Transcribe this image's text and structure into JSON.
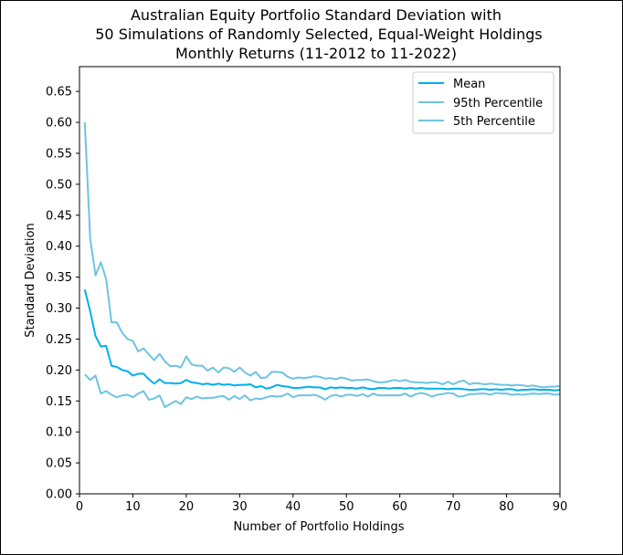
{
  "chart_data": {
    "type": "line",
    "title_lines": [
      "Australian Equity Portfolio Standard Deviation with",
      "50 Simulations of Randomly Selected, Equal-Weight Holdings",
      "Monthly Returns (11-2012 to 11-2022)"
    ],
    "xlabel": "Number of Portfolio Holdings",
    "ylabel": "Standard Deviation",
    "xlim": [
      0,
      90
    ],
    "ylim": [
      0,
      0.69
    ],
    "xticks": [
      0,
      10,
      20,
      30,
      40,
      50,
      60,
      70,
      80,
      90
    ],
    "yticks": [
      0.0,
      0.05,
      0.1,
      0.15,
      0.2,
      0.25,
      0.3,
      0.35,
      0.4,
      0.45,
      0.5,
      0.55,
      0.6,
      0.65
    ],
    "ytick_labels": [
      "0.00",
      "0.05",
      "0.10",
      "0.15",
      "0.20",
      "0.25",
      "0.30",
      "0.35",
      "0.40",
      "0.45",
      "0.50",
      "0.55",
      "0.60",
      "0.65"
    ],
    "grid": false,
    "legend_position": "top-right",
    "x": [
      1,
      2,
      3,
      4,
      5,
      6,
      7,
      8,
      9,
      10,
      11,
      12,
      13,
      14,
      15,
      16,
      17,
      18,
      19,
      20,
      21,
      22,
      23,
      24,
      25,
      26,
      27,
      28,
      29,
      30,
      31,
      32,
      33,
      34,
      35,
      36,
      37,
      38,
      39,
      40,
      41,
      42,
      43,
      44,
      45,
      46,
      47,
      48,
      49,
      50,
      51,
      52,
      53,
      54,
      55,
      56,
      57,
      58,
      59,
      60,
      61,
      62,
      63,
      64,
      65,
      66,
      67,
      68,
      69,
      70,
      71,
      72,
      73,
      74,
      75,
      76,
      77,
      78,
      79,
      80,
      81,
      82,
      83,
      84,
      85,
      86,
      87,
      88,
      89,
      90
    ],
    "series": [
      {
        "name": "Mean",
        "color": "#00aeef",
        "values": [
          0.33,
          0.295,
          0.255,
          0.238,
          0.239,
          0.207,
          0.205,
          0.2,
          0.198,
          0.191,
          0.194,
          0.194,
          0.185,
          0.178,
          0.185,
          0.179,
          0.179,
          0.178,
          0.179,
          0.184,
          0.18,
          0.179,
          0.177,
          0.178,
          0.176,
          0.178,
          0.176,
          0.177,
          0.175,
          0.176,
          0.176,
          0.177,
          0.172,
          0.174,
          0.17,
          0.172,
          0.176,
          0.174,
          0.173,
          0.171,
          0.171,
          0.172,
          0.173,
          0.172,
          0.172,
          0.169,
          0.172,
          0.171,
          0.172,
          0.171,
          0.171,
          0.17,
          0.172,
          0.17,
          0.169,
          0.171,
          0.171,
          0.17,
          0.171,
          0.171,
          0.17,
          0.171,
          0.17,
          0.171,
          0.17,
          0.17,
          0.17,
          0.17,
          0.169,
          0.17,
          0.17,
          0.169,
          0.168,
          0.168,
          0.169,
          0.169,
          0.168,
          0.169,
          0.168,
          0.169,
          0.169,
          0.167,
          0.168,
          0.168,
          0.169,
          0.168,
          0.168,
          0.168,
          0.167,
          0.168
        ]
      },
      {
        "name": "95th Percentile",
        "color": "#6ec3e3",
        "values": [
          0.6,
          0.413,
          0.353,
          0.374,
          0.347,
          0.277,
          0.277,
          0.26,
          0.25,
          0.247,
          0.23,
          0.235,
          0.225,
          0.216,
          0.226,
          0.214,
          0.206,
          0.207,
          0.204,
          0.222,
          0.209,
          0.207,
          0.207,
          0.199,
          0.204,
          0.196,
          0.204,
          0.203,
          0.197,
          0.204,
          0.196,
          0.191,
          0.197,
          0.187,
          0.188,
          0.197,
          0.197,
          0.196,
          0.189,
          0.186,
          0.188,
          0.187,
          0.188,
          0.19,
          0.189,
          0.186,
          0.187,
          0.185,
          0.188,
          0.186,
          0.183,
          0.184,
          0.184,
          0.185,
          0.182,
          0.18,
          0.18,
          0.182,
          0.184,
          0.182,
          0.184,
          0.181,
          0.18,
          0.18,
          0.179,
          0.18,
          0.18,
          0.177,
          0.181,
          0.177,
          0.181,
          0.183,
          0.177,
          0.179,
          0.178,
          0.177,
          0.178,
          0.177,
          0.176,
          0.176,
          0.175,
          0.176,
          0.175,
          0.174,
          0.175,
          0.173,
          0.172,
          0.173,
          0.173,
          0.174
        ]
      },
      {
        "name": "5th Percentile",
        "color": "#6ec3e3",
        "values": [
          0.193,
          0.184,
          0.191,
          0.162,
          0.166,
          0.16,
          0.156,
          0.159,
          0.16,
          0.156,
          0.162,
          0.166,
          0.152,
          0.154,
          0.159,
          0.14,
          0.145,
          0.15,
          0.145,
          0.156,
          0.153,
          0.157,
          0.154,
          0.155,
          0.155,
          0.157,
          0.158,
          0.152,
          0.158,
          0.153,
          0.159,
          0.151,
          0.154,
          0.153,
          0.156,
          0.158,
          0.157,
          0.158,
          0.162,
          0.156,
          0.159,
          0.159,
          0.159,
          0.16,
          0.157,
          0.152,
          0.158,
          0.16,
          0.157,
          0.16,
          0.16,
          0.158,
          0.161,
          0.157,
          0.162,
          0.159,
          0.159,
          0.159,
          0.159,
          0.159,
          0.162,
          0.157,
          0.161,
          0.163,
          0.161,
          0.157,
          0.16,
          0.161,
          0.163,
          0.162,
          0.157,
          0.158,
          0.161,
          0.161,
          0.162,
          0.162,
          0.16,
          0.163,
          0.162,
          0.162,
          0.16,
          0.161,
          0.16,
          0.161,
          0.162,
          0.161,
          0.162,
          0.162,
          0.16,
          0.161
        ]
      }
    ]
  }
}
